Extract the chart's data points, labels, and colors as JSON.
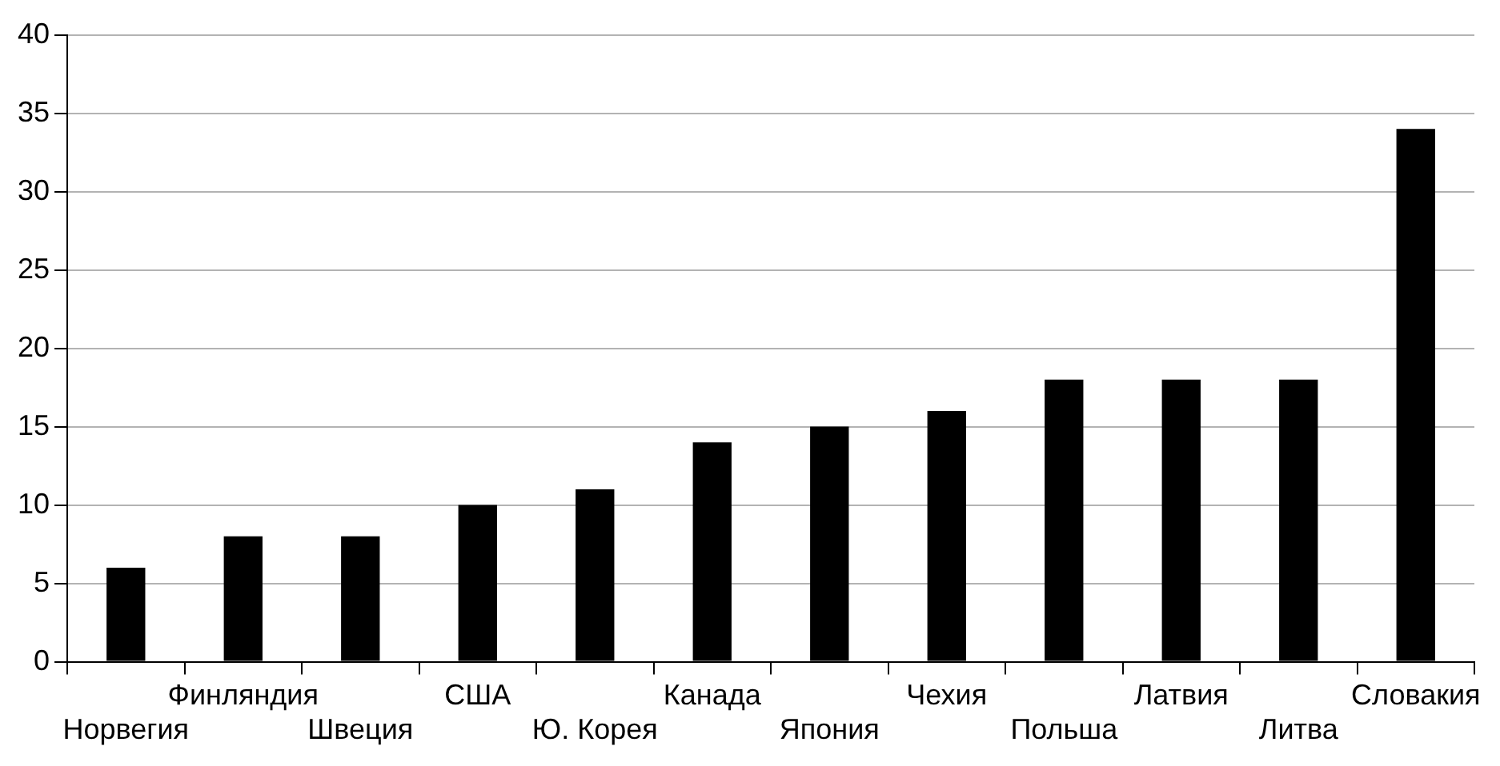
{
  "chart_data": {
    "type": "bar",
    "categories": [
      "Норвегия",
      "Финляндия",
      "Швеция",
      "США",
      "Ю. Корея",
      "Канада",
      "Япония",
      "Чехия",
      "Польша",
      "Латвия",
      "Литва",
      "Словакия"
    ],
    "values": [
      6,
      8,
      8,
      10,
      11,
      14,
      15,
      16,
      18,
      18,
      18,
      34
    ],
    "color": "#000000",
    "ylim": [
      0,
      40
    ],
    "yticks": [
      0,
      5,
      10,
      15,
      20,
      25,
      30,
      35,
      40
    ],
    "grid": "y"
  }
}
